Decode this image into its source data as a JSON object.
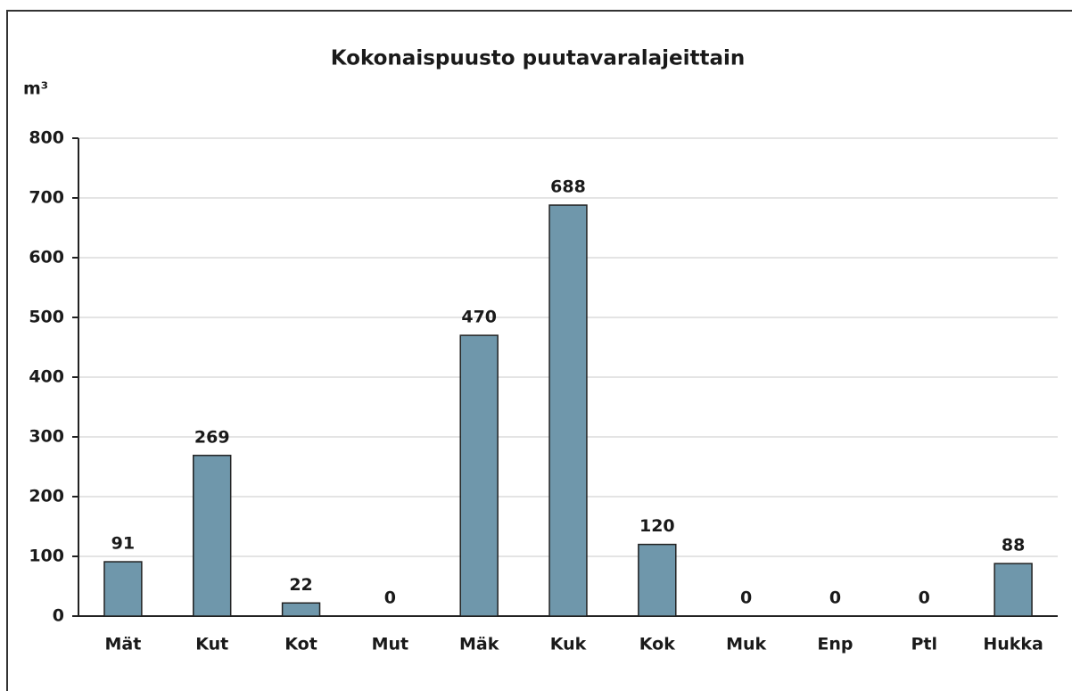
{
  "chart_data": {
    "type": "bar",
    "title": "Kokonaispuusto puutavaralajeittain",
    "y_label": "m³",
    "categories": [
      "Mät",
      "Kut",
      "Kot",
      "Mut",
      "Mäk",
      "Kuk",
      "Kok",
      "Muk",
      "Enp",
      "Ptl",
      "Hukka"
    ],
    "values": [
      91,
      269,
      22,
      0,
      470,
      688,
      120,
      0,
      0,
      0,
      88
    ],
    "color": "#6f97ab",
    "ylim": [
      0,
      800
    ],
    "yticks": [
      0,
      100,
      200,
      300,
      400,
      500,
      600,
      700,
      800
    ],
    "grid": true
  }
}
